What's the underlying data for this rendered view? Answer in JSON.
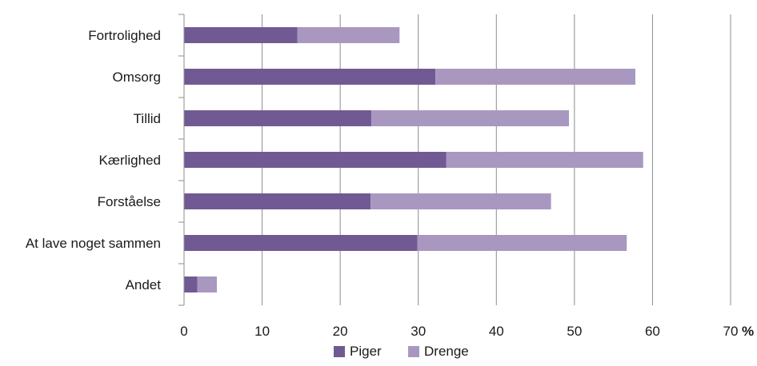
{
  "chart_data": {
    "type": "bar",
    "orientation": "horizontal",
    "stacked": true,
    "categories": [
      "Fortrolighed",
      "Omsorg",
      "Tillid",
      "Kærlighed",
      "Forståelse",
      "At lave noget sammen",
      "Andet"
    ],
    "series": [
      {
        "name": "Piger",
        "values": [
          14.5,
          32.2,
          24.0,
          33.6,
          23.9,
          29.9,
          1.7
        ],
        "color": "#715a93"
      },
      {
        "name": "Drenge",
        "values": [
          13.1,
          25.6,
          25.3,
          25.2,
          23.1,
          26.8,
          2.5
        ],
        "color": "#a898bf"
      }
    ],
    "x_ticks": [
      "0",
      "10",
      "20",
      "30",
      "40",
      "50",
      "60",
      "70"
    ],
    "xlim": [
      0,
      70
    ],
    "x_unit": "%",
    "grid": "vertical",
    "legend_position": "bottom"
  }
}
